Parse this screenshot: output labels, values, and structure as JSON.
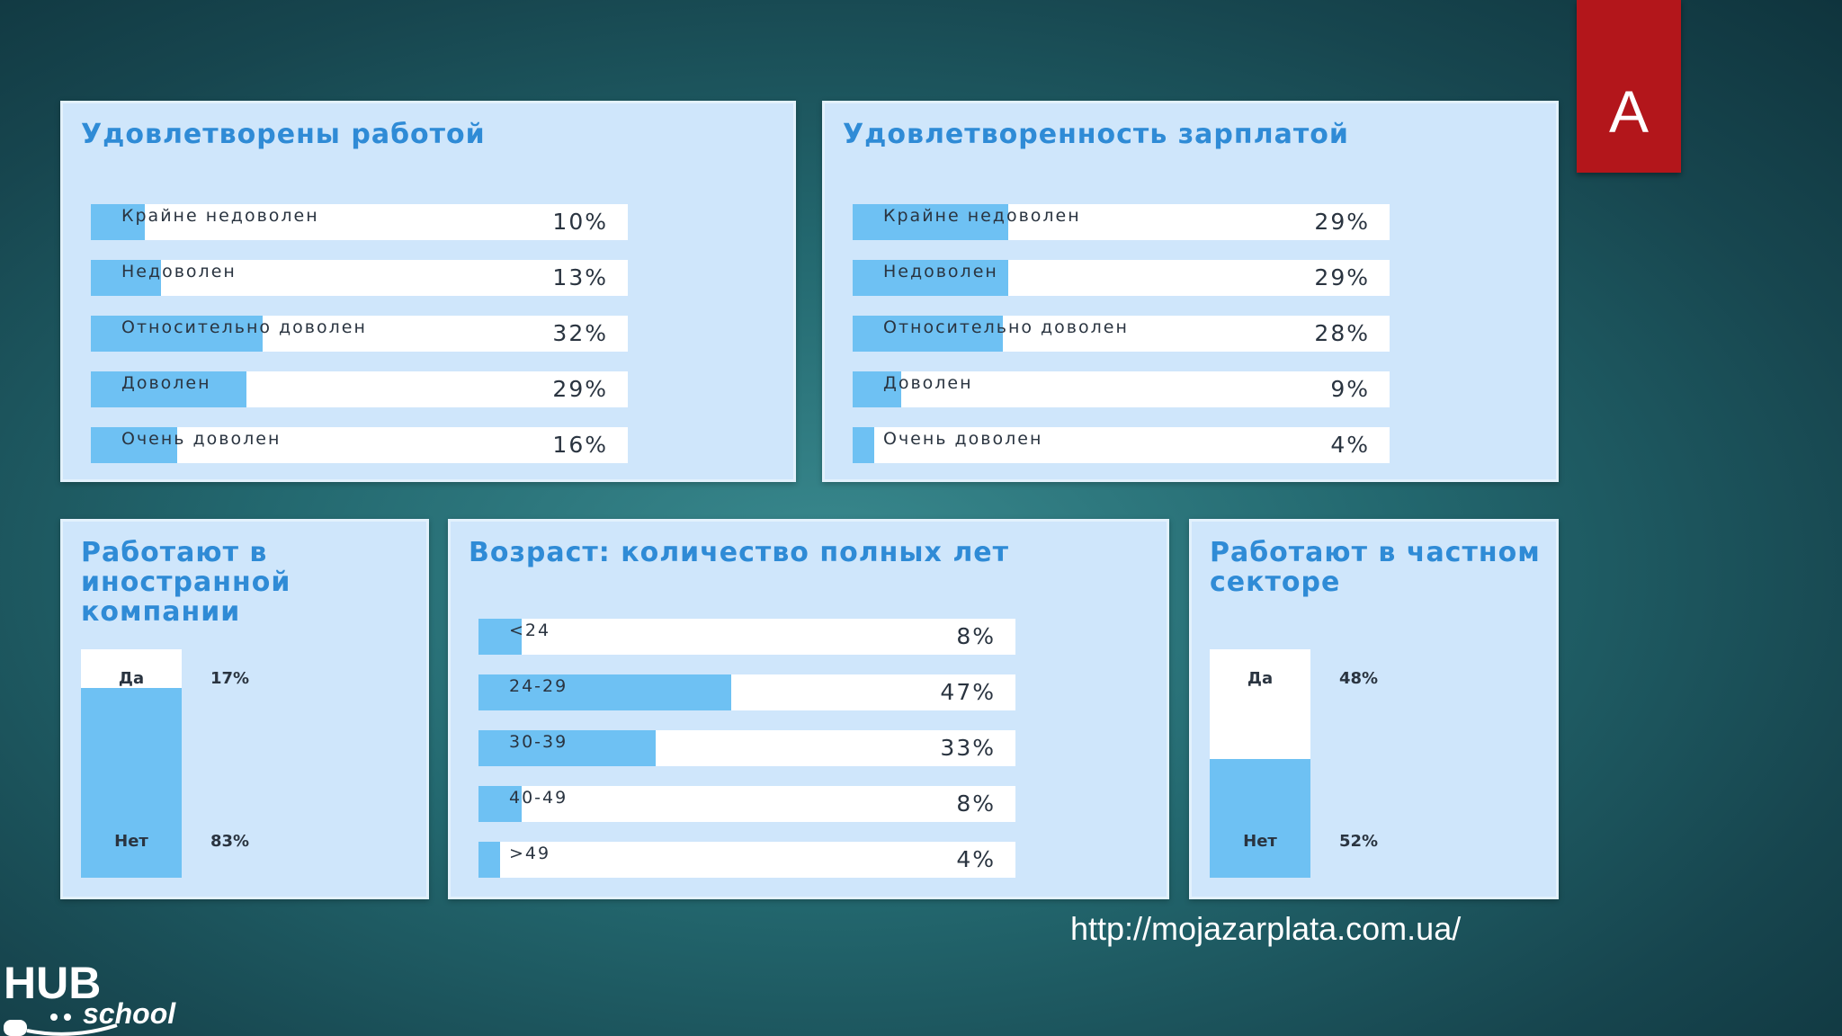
{
  "badge": {
    "letter": "A"
  },
  "source_url": "http://mojazarplata.com.ua/",
  "logo": {
    "line1": "HUB",
    "line2": "school"
  },
  "colors": {
    "fill": "#6ec1f3",
    "title": "#2f8bd6",
    "badge": "#b3161b",
    "panel": "#cfe6fb"
  },
  "chart_data": [
    {
      "type": "bar",
      "title": "Удовлетворены работой",
      "categories": [
        "Крайне недоволен",
        "Недоволен",
        "Относительно доволен",
        "Доволен",
        "Очень доволен"
      ],
      "values": [
        10,
        13,
        32,
        29,
        16
      ],
      "labels": [
        "10%",
        "13%",
        "32%",
        "29%",
        "16%"
      ],
      "unit": "%",
      "xlim": [
        0,
        100
      ]
    },
    {
      "type": "bar",
      "title": "Удовлетворенность зарплатой",
      "categories": [
        "Крайне недоволен",
        "Недоволен",
        "Относительно доволен",
        "Доволен",
        "Очень доволен"
      ],
      "values": [
        29,
        29,
        28,
        9,
        4
      ],
      "labels": [
        "29%",
        "29%",
        "28%",
        "9%",
        "4%"
      ],
      "unit": "%",
      "xlim": [
        0,
        100
      ]
    },
    {
      "type": "bar",
      "stacked": true,
      "title": "Работают в иностранной компании",
      "categories": [
        "Да",
        "Нет"
      ],
      "values": [
        17,
        83
      ],
      "labels": [
        "17%",
        "83%"
      ],
      "unit": "%",
      "ylim": [
        0,
        100
      ]
    },
    {
      "type": "bar",
      "title": "Возраст: количество полных лет",
      "categories": [
        "<24",
        "24-29",
        "30-39",
        "40-49",
        ">49"
      ],
      "values": [
        8,
        47,
        33,
        8,
        4
      ],
      "labels": [
        "8%",
        "47%",
        "33%",
        "8%",
        "4%"
      ],
      "unit": "%",
      "xlim": [
        0,
        100
      ]
    },
    {
      "type": "bar",
      "stacked": true,
      "title": "Работают в частном секторе",
      "categories": [
        "Да",
        "Нет"
      ],
      "values": [
        48,
        52
      ],
      "labels": [
        "48%",
        "52%"
      ],
      "unit": "%",
      "ylim": [
        0,
        100
      ]
    }
  ]
}
